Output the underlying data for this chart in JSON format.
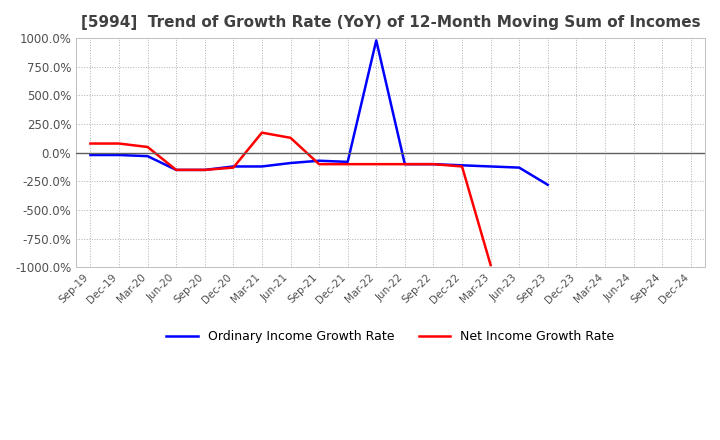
{
  "title": "[5994]  Trend of Growth Rate (YoY) of 12-Month Moving Sum of Incomes",
  "ylim": [
    -1000,
    1000
  ],
  "yticks": [
    -1000,
    -750,
    -500,
    -250,
    0,
    250,
    500,
    750,
    1000
  ],
  "ytick_labels": [
    "-1000.0%",
    "-750.0%",
    "-500.0%",
    "-250.0%",
    "0.0%",
    "250.0%",
    "500.0%",
    "750.0%",
    "1000.0%"
  ],
  "x_labels": [
    "Sep-19",
    "Dec-19",
    "Mar-20",
    "Jun-20",
    "Sep-20",
    "Dec-20",
    "Mar-21",
    "Jun-21",
    "Sep-21",
    "Dec-21",
    "Mar-22",
    "Jun-22",
    "Sep-22",
    "Dec-22",
    "Mar-23",
    "Jun-23",
    "Sep-23",
    "Dec-23",
    "Mar-24",
    "Jun-24",
    "Sep-24",
    "Dec-24"
  ],
  "ordinary_color": "#0000ff",
  "net_color": "#ff0000",
  "background_color": "#ffffff",
  "grid_color": "#b0b0b0",
  "title_color": "#404040",
  "legend_ordinary": "Ordinary Income Growth Rate",
  "legend_net": "Net Income Growth Rate",
  "ordinary_income": [
    -20,
    -20,
    -30,
    -150,
    -150,
    -120,
    -120,
    -90,
    -70,
    -80,
    980,
    -100,
    -100,
    -110,
    -120,
    -130,
    -280,
    null,
    null,
    null,
    null,
    null
  ],
  "net_income": [
    80,
    80,
    50,
    -150,
    -150,
    -130,
    175,
    130,
    -100,
    -100,
    -100,
    -100,
    -100,
    -120,
    -980,
    null,
    null,
    null,
    null,
    null,
    null,
    null
  ]
}
